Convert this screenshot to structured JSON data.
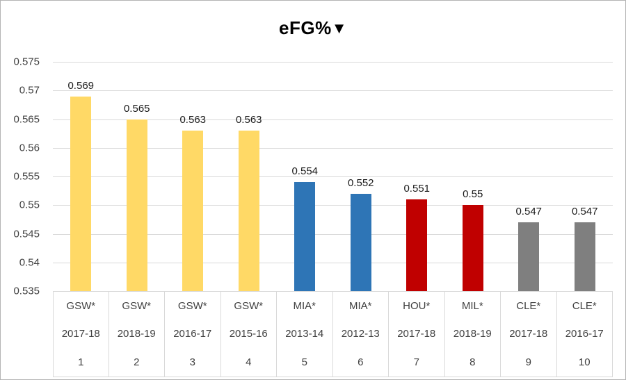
{
  "chart_data": {
    "type": "bar",
    "title": "eFG%",
    "sort_icon": "▼",
    "ylabel": "",
    "xlabel": "",
    "ylim": [
      0.535,
      0.575
    ],
    "ytick_step": 0.005,
    "yticks": [
      "0.575",
      "0.57",
      "0.565",
      "0.56",
      "0.555",
      "0.55",
      "0.545",
      "0.54",
      "0.535"
    ],
    "grid": true,
    "legend": "none",
    "categories": [
      {
        "team": "GSW*",
        "season": "2017-18",
        "rank": "1"
      },
      {
        "team": "GSW*",
        "season": "2018-19",
        "rank": "2"
      },
      {
        "team": "GSW*",
        "season": "2016-17",
        "rank": "3"
      },
      {
        "team": "GSW*",
        "season": "2015-16",
        "rank": "4"
      },
      {
        "team": "MIA*",
        "season": "2013-14",
        "rank": "5"
      },
      {
        "team": "MIA*",
        "season": "2012-13",
        "rank": "6"
      },
      {
        "team": "HOU*",
        "season": "2017-18",
        "rank": "7"
      },
      {
        "team": "MIL*",
        "season": "2018-19",
        "rank": "8"
      },
      {
        "team": "CLE*",
        "season": "2017-18",
        "rank": "9"
      },
      {
        "team": "CLE*",
        "season": "2016-17",
        "rank": "10"
      }
    ],
    "values": [
      0.569,
      0.565,
      0.563,
      0.563,
      0.554,
      0.552,
      0.551,
      0.55,
      0.547,
      0.547
    ],
    "value_labels": [
      "0.569",
      "0.565",
      "0.563",
      "0.563",
      "0.554",
      "0.552",
      "0.551",
      "0.55",
      "0.547",
      "0.547"
    ],
    "bar_colors": [
      "#FFD966",
      "#FFD966",
      "#FFD966",
      "#FFD966",
      "#2E75B6",
      "#2E75B6",
      "#C00000",
      "#C00000",
      "#7F7F7F",
      "#7F7F7F"
    ],
    "colors": {
      "gold": "#FFD966",
      "blue": "#2E75B6",
      "red": "#C00000",
      "gray": "#7F7F7F",
      "gridline": "#D9D9D9",
      "axis_text": "#404040"
    }
  }
}
